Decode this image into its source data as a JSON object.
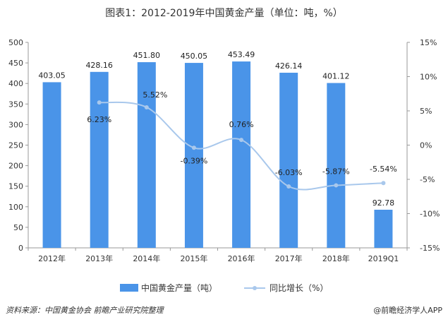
{
  "title": "图表1：2012-2019年中国黄金产量（单位：吨，%）",
  "footer": {
    "source": "资料来源：中国黄金协会 前瞻产业研究院整理",
    "brand": "@前瞻经济学人APP"
  },
  "colors": {
    "bar": "#4a94e8",
    "line": "#a9c8ec",
    "axis": "#999999"
  },
  "chart_data": {
    "type": "bar",
    "categories": [
      "2012年",
      "2013年",
      "2014年",
      "2015年",
      "2016年",
      "2017年",
      "2018年",
      "2019Q1"
    ],
    "series": [
      {
        "name": "中国黄金产量（吨）",
        "type": "bar",
        "axis": "left",
        "values": [
          403.05,
          428.16,
          451.8,
          450.05,
          453.49,
          426.14,
          401.12,
          92.78
        ],
        "labels": [
          "403.05",
          "428.16",
          "451.80",
          "450.05",
          "453.49",
          "426.14",
          "401.12",
          "92.78"
        ]
      },
      {
        "name": "同比增长（%）",
        "type": "line",
        "axis": "right",
        "values": [
          null,
          6.23,
          5.52,
          -0.39,
          0.76,
          -6.03,
          -5.87,
          -5.54
        ],
        "labels": [
          "",
          "6.23%",
          "5.52%",
          "-0.39%",
          "0.76%",
          "-6.03%",
          "-5.87%",
          "-5.54%"
        ]
      }
    ],
    "y_left": {
      "min": 0,
      "max": 500,
      "ticks": [
        "0",
        "50",
        "100",
        "150",
        "200",
        "250",
        "300",
        "350",
        "400",
        "450",
        "500"
      ]
    },
    "y_right": {
      "min": -15,
      "max": 15,
      "ticks": [
        "-15%",
        "-10%",
        "-5%",
        "0%",
        "5%",
        "10%",
        "15%"
      ]
    },
    "grid": false,
    "legend_position": "bottom"
  }
}
